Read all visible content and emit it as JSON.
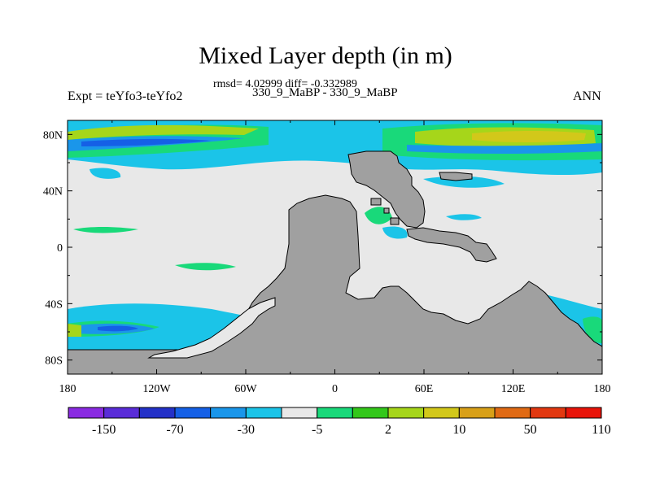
{
  "chart_data": {
    "type": "heatmap",
    "title": "Mixed Layer depth (in m)",
    "stats": "rmsd= 4.02999 diff= -0.332989",
    "subtitle": "330_9_MaBP - 330_9_MaBP",
    "left_label": "Expt = teYfo3-teYfo2",
    "right_label": "ANN",
    "x_ticks": [
      "180",
      "120W",
      "60W",
      "0",
      "60E",
      "120E",
      "180"
    ],
    "y_ticks": [
      "80N",
      "40N",
      "0",
      "40S",
      "80S"
    ],
    "xlim": [
      -180,
      180
    ],
    "ylim": [
      -90,
      90
    ],
    "colorbar": {
      "labels": [
        "-150",
        "-70",
        "-30",
        "-5",
        "2",
        "10",
        "50",
        "110"
      ],
      "colors": [
        "#8a2be2",
        "#5a2cd8",
        "#2431c8",
        "#1560e6",
        "#1a96ea",
        "#1bc4e8",
        "#e8e8e8",
        "#19d97a",
        "#33c81a",
        "#a6d61a",
        "#d2c81a",
        "#d8a018",
        "#e06a14",
        "#e23810",
        "#e8140a"
      ]
    },
    "colors": {
      "land": "#a0a0a0",
      "ocean": "#e8e8e8",
      "cyan": "#1bc4e8",
      "blue_mid": "#1a96ea",
      "blue_deep": "#1560e6",
      "green": "#19d97a",
      "lime": "#33c81a",
      "yellow_green": "#a6d61a",
      "yellow": "#d2c81a"
    }
  }
}
